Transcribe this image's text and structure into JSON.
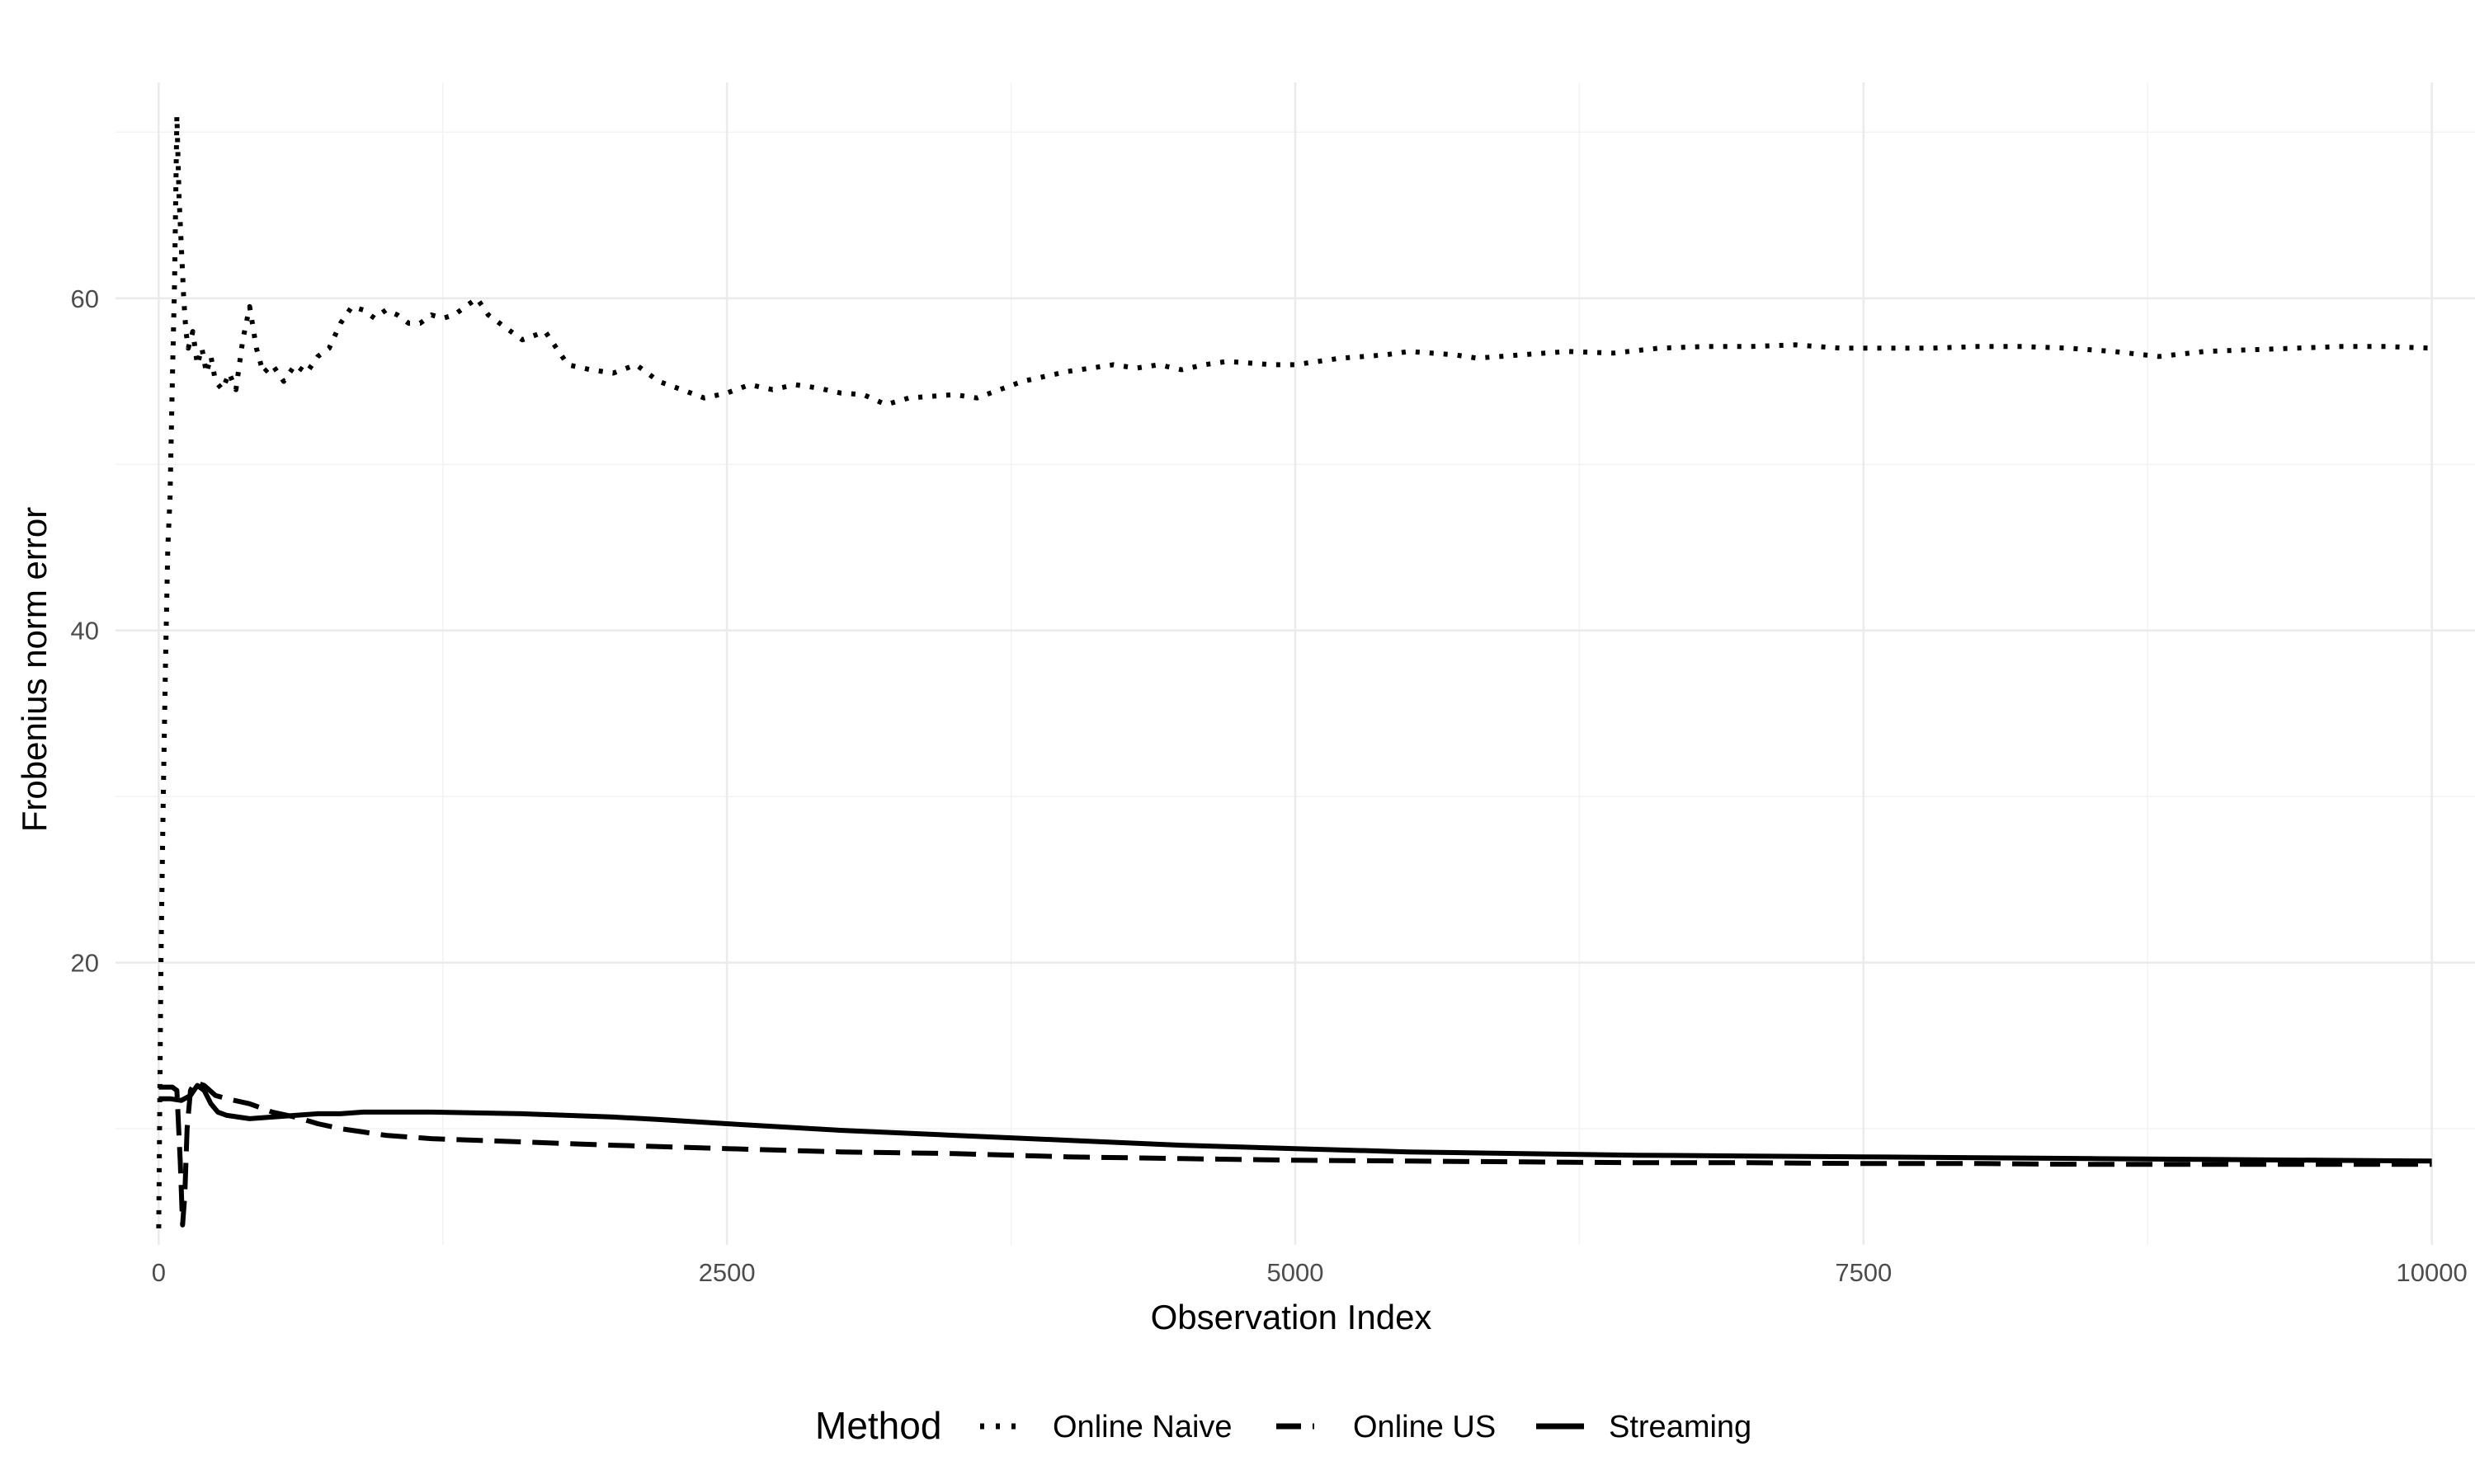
{
  "chart_data": {
    "type": "line",
    "title": "",
    "xlabel": "Observation Index",
    "ylabel": "Frobenius norm error",
    "xlim": [
      -190,
      10190
    ],
    "ylim": [
      3,
      73
    ],
    "x_ticks": [
      0,
      2500,
      5000,
      7500,
      10000
    ],
    "x_tick_labels": [
      "0",
      "2500",
      "5000",
      "7500",
      "10000"
    ],
    "y_ticks": [
      20,
      40,
      60
    ],
    "y_tick_labels": [
      "20",
      "40",
      "60"
    ],
    "grid": true,
    "legend": {
      "title": "Method",
      "position": "bottom",
      "entries": [
        "Online Naive",
        "Online US",
        "Streaming"
      ]
    },
    "series": [
      {
        "name": "Online Naive",
        "dash": "dotted",
        "x": [
          0,
          10,
          20,
          30,
          40,
          50,
          60,
          70,
          80,
          90,
          100,
          110,
          120,
          130,
          150,
          170,
          190,
          210,
          230,
          250,
          280,
          310,
          340,
          370,
          400,
          430,
          460,
          500,
          550,
          600,
          650,
          700,
          750,
          800,
          850,
          900,
          950,
          1000,
          1050,
          1100,
          1150,
          1200,
          1250,
          1300,
          1350,
          1400,
          1450,
          1500,
          1600,
          1700,
          1800,
          1900,
          2000,
          2100,
          2200,
          2300,
          2400,
          2500,
          2600,
          2700,
          2800,
          2900,
          3000,
          3100,
          3200,
          3300,
          3400,
          3500,
          3600,
          3700,
          3800,
          3900,
          4000,
          4100,
          4200,
          4300,
          4400,
          4500,
          4600,
          4700,
          4800,
          4900,
          5000,
          5100,
          5200,
          5300,
          5400,
          5500,
          5600,
          5700,
          5800,
          5900,
          6000,
          6200,
          6400,
          6600,
          6800,
          7000,
          7200,
          7400,
          7600,
          7800,
          8000,
          8200,
          8400,
          8600,
          8800,
          9000,
          9200,
          9400,
          9600,
          9800,
          10000
        ],
        "y": [
          4,
          20,
          30,
          38,
          45,
          48,
          55,
          61,
          71,
          66,
          63,
          60,
          58,
          57,
          58,
          56,
          57,
          55.5,
          56.5,
          55,
          54.5,
          55.5,
          54.5,
          57.5,
          59.5,
          57,
          55.5,
          56,
          55,
          56,
          55.5,
          56.5,
          57,
          58.5,
          59.5,
          59.3,
          58.8,
          59.3,
          59,
          58.5,
          58.5,
          59,
          58.8,
          59,
          59.5,
          60,
          59,
          58.5,
          57.5,
          58,
          56,
          55.7,
          55.5,
          56,
          55,
          54.5,
          54,
          54.3,
          54.8,
          54.5,
          54.8,
          54.6,
          54.3,
          54.2,
          53.6,
          54,
          54.1,
          54.2,
          54,
          54.5,
          55,
          55.3,
          55.6,
          55.8,
          56,
          55.8,
          56,
          55.7,
          56,
          56.2,
          56.1,
          56,
          56,
          56.2,
          56.4,
          56.5,
          56.6,
          56.8,
          56.7,
          56.6,
          56.4,
          56.5,
          56.6,
          56.8,
          56.7,
          57,
          57.1,
          57.1,
          57.2,
          57,
          57,
          57,
          57.1,
          57.1,
          57,
          56.8,
          56.5,
          56.8,
          56.9,
          57,
          57.1,
          57.1,
          57
        ]
      },
      {
        "name": "Online US",
        "dash": "dashed",
        "x": [
          0,
          60,
          80,
          95,
          105,
          115,
          125,
          140,
          160,
          200,
          250,
          300,
          400,
          500,
          600,
          700,
          800,
          900,
          1000,
          1200,
          1400,
          1600,
          1800,
          2000,
          2500,
          3000,
          3500,
          4000,
          4500,
          5000,
          5500,
          6000,
          6500,
          7000,
          7500,
          8000,
          8500,
          9000,
          9500,
          10000
        ],
        "y": [
          12.5,
          12.5,
          12.3,
          8,
          4.2,
          6,
          10,
          12.3,
          12.8,
          12.6,
          12,
          11.8,
          11.5,
          11,
          10.7,
          10.3,
          10,
          9.8,
          9.6,
          9.4,
          9.3,
          9.2,
          9.1,
          9,
          8.8,
          8.6,
          8.5,
          8.3,
          8.2,
          8.1,
          8.05,
          8,
          7.95,
          7.95,
          7.9,
          7.9,
          7.85,
          7.85,
          7.85,
          7.85
        ]
      },
      {
        "name": "Streaming",
        "dash": "solid",
        "x": [
          0,
          50,
          100,
          140,
          170,
          200,
          230,
          260,
          300,
          400,
          500,
          600,
          700,
          800,
          900,
          1000,
          1100,
          1200,
          1400,
          1600,
          1800,
          2000,
          2200,
          2500,
          3000,
          3500,
          4000,
          4500,
          5000,
          5500,
          6000,
          6500,
          7000,
          7500,
          8000,
          8500,
          9000,
          9500,
          10000
        ],
        "y": [
          11.8,
          11.8,
          11.7,
          12,
          12.6,
          12.3,
          11.5,
          11,
          10.8,
          10.6,
          10.7,
          10.8,
          10.9,
          10.9,
          11,
          11,
          11,
          11,
          10.95,
          10.9,
          10.8,
          10.7,
          10.55,
          10.3,
          9.9,
          9.6,
          9.3,
          9.0,
          8.8,
          8.6,
          8.5,
          8.4,
          8.35,
          8.3,
          8.25,
          8.2,
          8.15,
          8.1,
          8.05
        ]
      }
    ]
  }
}
